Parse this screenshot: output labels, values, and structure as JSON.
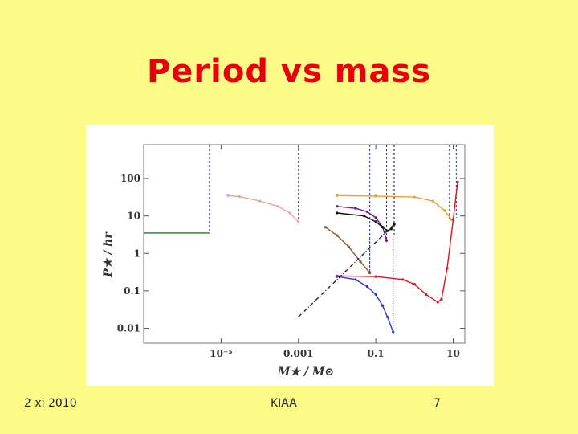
{
  "slide": {
    "title": "Period vs mass",
    "footer_left": "2 xi 2010",
    "footer_center": "KIAA",
    "footer_right": "7"
  },
  "chart_data": {
    "type": "line",
    "title": "",
    "xlabel": "M★ / M⊙",
    "ylabel": "P★ / hr",
    "x_scale": "log",
    "y_scale": "log",
    "xlim": [
      1e-07,
      20
    ],
    "ylim": [
      0.004,
      800
    ],
    "x_ticks": [
      {
        "value": 1e-05,
        "label": "10⁻⁵"
      },
      {
        "value": 0.001,
        "label": "0.001"
      },
      {
        "value": 0.1,
        "label": "0.1"
      },
      {
        "value": 10,
        "label": "10"
      }
    ],
    "y_ticks": [
      {
        "value": 100,
        "label": "100"
      },
      {
        "value": 10,
        "label": "10"
      },
      {
        "value": 1,
        "label": "1"
      },
      {
        "value": 0.1,
        "label": "0.1"
      },
      {
        "value": 0.01,
        "label": "0.01"
      }
    ],
    "grid": false,
    "vertical_lines": [
      {
        "x": 5e-06,
        "y_from": 3.5,
        "color": "#1a2a8a"
      },
      {
        "x": 0.001,
        "y_from": 7,
        "color": "#1a2a8a"
      },
      {
        "x": 0.07,
        "y_from": 0.3,
        "color": "#1a2a8a"
      },
      {
        "x": 0.19,
        "y_from": 2,
        "color": "#1a2a8a"
      },
      {
        "x": 0.28,
        "y_from": 0.008,
        "color": "#1a2a8a"
      },
      {
        "x": 0.3,
        "y_from": 3,
        "color": "#1a2a8a"
      },
      {
        "x": 8,
        "y_from": 8,
        "color": "#1a2a8a"
      },
      {
        "x": 12,
        "y_from": 9,
        "color": "#1a2a8a"
      }
    ],
    "series": [
      {
        "color": "#1a7a1a",
        "style": "solid",
        "x": [
          1e-07,
          5e-06,
          5e-06
        ],
        "y": [
          3.5,
          3.5,
          3.5
        ]
      },
      {
        "color": "#f0a0a0",
        "style": "solid",
        "markers": true,
        "x": [
          1.5e-05,
          3e-05,
          0.0001,
          0.0003,
          0.0006,
          0.001
        ],
        "y": [
          35,
          33,
          25,
          18,
          12,
          7
        ]
      },
      {
        "color": "#e8a030",
        "style": "solid",
        "markers": true,
        "x": [
          0.01,
          0.1,
          1,
          3,
          6,
          9
        ],
        "y": [
          35,
          34,
          32,
          25,
          14,
          8
        ]
      },
      {
        "color": "#6a1a8a",
        "style": "solid",
        "markers": true,
        "x": [
          0.01,
          0.03,
          0.06,
          0.1,
          0.15,
          0.19
        ],
        "y": [
          18,
          16,
          13,
          9,
          5,
          2.2
        ]
      },
      {
        "color": "#111111",
        "style": "solid",
        "markers": true,
        "x": [
          0.01,
          0.05,
          0.1,
          0.15,
          0.2,
          0.25,
          0.3
        ],
        "y": [
          12,
          10,
          7,
          5,
          4,
          4.5,
          6
        ]
      },
      {
        "color": "#8a5a2a",
        "style": "solid",
        "markers": true,
        "x": [
          0.005,
          0.01,
          0.02,
          0.04,
          0.07
        ],
        "y": [
          5,
          3,
          1.5,
          0.6,
          0.3
        ]
      },
      {
        "color": "#e8101a",
        "style": "solid",
        "markers": true,
        "x": [
          0.01,
          0.1,
          0.5,
          1,
          2,
          4,
          5,
          7,
          10,
          13
        ],
        "y": [
          0.25,
          0.24,
          0.2,
          0.15,
          0.08,
          0.05,
          0.06,
          0.4,
          8,
          80
        ]
      },
      {
        "color": "#2a3ad0",
        "style": "solid",
        "markers": true,
        "x": [
          0.01,
          0.03,
          0.06,
          0.1,
          0.15,
          0.2,
          0.28
        ],
        "y": [
          0.24,
          0.2,
          0.13,
          0.08,
          0.04,
          0.02,
          0.008
        ]
      },
      {
        "color": "#222222",
        "style": "dashdot",
        "x": [
          0.001,
          0.3
        ],
        "y": [
          0.02,
          6
        ]
      }
    ]
  }
}
